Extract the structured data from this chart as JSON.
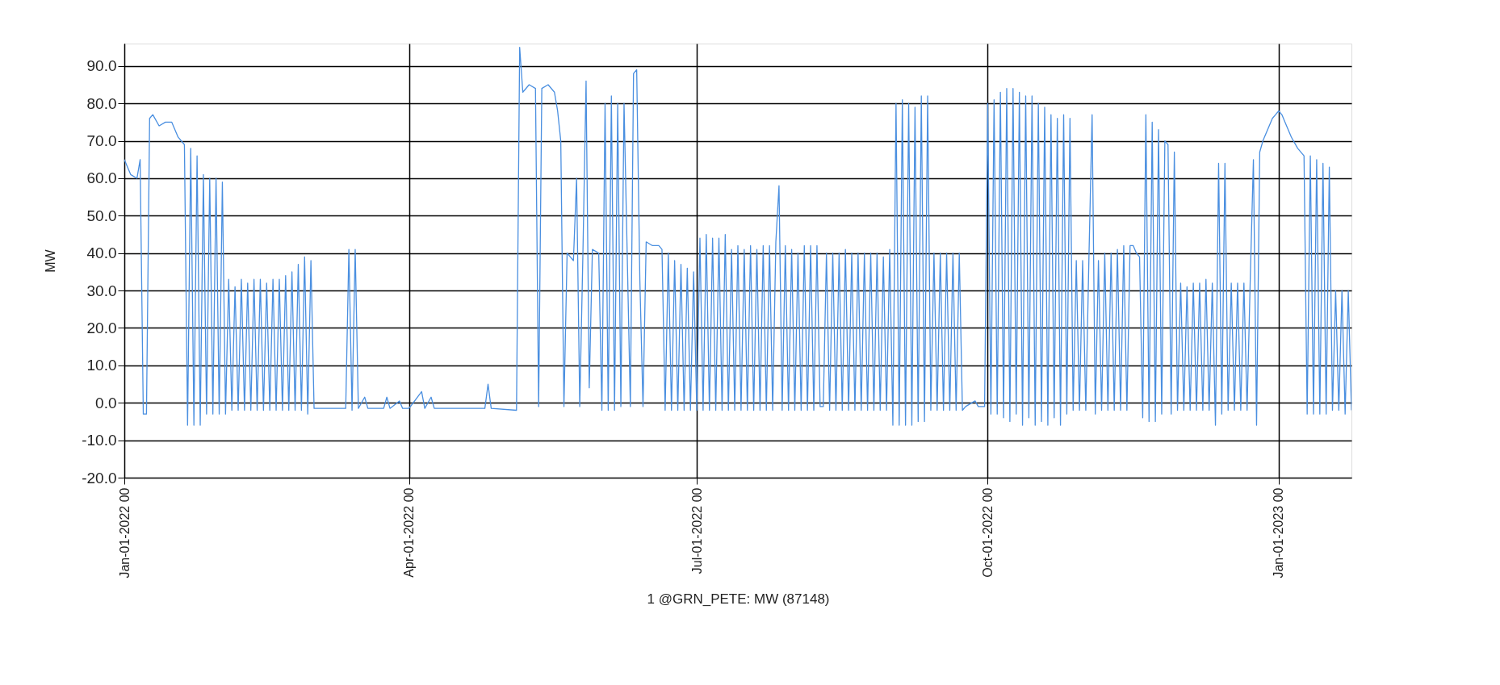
{
  "chart_data": {
    "type": "line",
    "ylabel": "MW",
    "xlabel": "1 @GRN_PETE: MW   (87148)",
    "xlim": [
      "2022-01-01",
      "2023-01-24"
    ],
    "xticks": [
      {
        "value": "2022-01-01",
        "label": "Jan-01-2022 00"
      },
      {
        "value": "2022-04-01",
        "label": "Apr-01-2022 00"
      },
      {
        "value": "2022-07-01",
        "label": "Jul-01-2022 00"
      },
      {
        "value": "2022-10-01",
        "label": "Oct-01-2022 00"
      },
      {
        "value": "2023-01-01",
        "label": "Jan-01-2023 00"
      }
    ],
    "ylim": [
      -20,
      96
    ],
    "yticks": [
      {
        "value": -20,
        "label": "-20.0"
      },
      {
        "value": -10,
        "label": "-10.0"
      },
      {
        "value": 0,
        "label": "0.0"
      },
      {
        "value": 10,
        "label": "10.0"
      },
      {
        "value": 20,
        "label": "20.0"
      },
      {
        "value": 30,
        "label": "30.0"
      },
      {
        "value": 40,
        "label": "40.0"
      },
      {
        "value": 50,
        "label": "50.0"
      },
      {
        "value": 60,
        "label": "60.0"
      },
      {
        "value": 70,
        "label": "70.0"
      },
      {
        "value": 80,
        "label": "80.0"
      },
      {
        "value": 90,
        "label": "90.0"
      }
    ],
    "grid": true,
    "marker": "none",
    "line_style": "solid",
    "series": [
      {
        "color": "#4a8fe0",
        "x": [
          "2022-01-01",
          "2022-01-03",
          "2022-01-05",
          "2022-01-06",
          "2022-01-07",
          "2022-01-08",
          "2022-01-09",
          "2022-01-10",
          "2022-01-12",
          "2022-01-14",
          "2022-01-16",
          "2022-01-18",
          "2022-01-20",
          "2022-01-21",
          "2022-01-22",
          "2022-01-23",
          "2022-01-24",
          "2022-01-25",
          "2022-01-26",
          "2022-01-27",
          "2022-01-28",
          "2022-01-29",
          "2022-01-30",
          "2022-01-31",
          "2022-02-01",
          "2022-02-02",
          "2022-02-03",
          "2022-02-04",
          "2022-02-05",
          "2022-02-06",
          "2022-02-07",
          "2022-02-08",
          "2022-02-09",
          "2022-02-10",
          "2022-02-11",
          "2022-02-12",
          "2022-02-13",
          "2022-02-14",
          "2022-02-15",
          "2022-02-16",
          "2022-02-17",
          "2022-02-18",
          "2022-02-19",
          "2022-02-20",
          "2022-02-21",
          "2022-02-22",
          "2022-02-23",
          "2022-02-24",
          "2022-02-25",
          "2022-02-26",
          "2022-02-27",
          "2022-02-28",
          "2022-03-01",
          "2022-03-02",
          "2022-03-12",
          "2022-03-13",
          "2022-03-14",
          "2022-03-15",
          "2022-03-16",
          "2022-03-18",
          "2022-03-19",
          "2022-03-24",
          "2022-03-25",
          "2022-03-26",
          "2022-03-29",
          "2022-03-30",
          "2022-04-01",
          "2022-04-05",
          "2022-04-06",
          "2022-04-08",
          "2022-04-09",
          "2022-04-25",
          "2022-04-26",
          "2022-04-27",
          "2022-05-05",
          "2022-05-06",
          "2022-05-07",
          "2022-05-09",
          "2022-05-11",
          "2022-05-12",
          "2022-05-13",
          "2022-05-15",
          "2022-05-17",
          "2022-05-18",
          "2022-05-19",
          "2022-05-20",
          "2022-05-21",
          "2022-05-22",
          "2022-05-23",
          "2022-05-24",
          "2022-05-25",
          "2022-05-26",
          "2022-05-27",
          "2022-05-28",
          "2022-05-29",
          "2022-05-31",
          "2022-06-01",
          "2022-06-02",
          "2022-06-03",
          "2022-06-04",
          "2022-06-05",
          "2022-06-06",
          "2022-06-07",
          "2022-06-08",
          "2022-06-09",
          "2022-06-10",
          "2022-06-11",
          "2022-06-12",
          "2022-06-13",
          "2022-06-14",
          "2022-06-15",
          "2022-06-17",
          "2022-06-19",
          "2022-06-20",
          "2022-06-21",
          "2022-06-22",
          "2022-06-23",
          "2022-06-24",
          "2022-06-25",
          "2022-06-26",
          "2022-06-27",
          "2022-06-28",
          "2022-06-29",
          "2022-06-30",
          "2022-07-01",
          "2022-07-02",
          "2022-07-03",
          "2022-07-04",
          "2022-07-05",
          "2022-07-06",
          "2022-07-07",
          "2022-07-08",
          "2022-07-09",
          "2022-07-10",
          "2022-07-11",
          "2022-07-12",
          "2022-07-13",
          "2022-07-14",
          "2022-07-15",
          "2022-07-16",
          "2022-07-17",
          "2022-07-18",
          "2022-07-19",
          "2022-07-20",
          "2022-07-21",
          "2022-07-22",
          "2022-07-23",
          "2022-07-24",
          "2022-07-25",
          "2022-07-26",
          "2022-07-27",
          "2022-07-28",
          "2022-07-29",
          "2022-07-30",
          "2022-07-31",
          "2022-08-01",
          "2022-08-02",
          "2022-08-03",
          "2022-08-04",
          "2022-08-05",
          "2022-08-06",
          "2022-08-07",
          "2022-08-08",
          "2022-08-09",
          "2022-08-10",
          "2022-08-11",
          "2022-08-12",
          "2022-08-13",
          "2022-08-14",
          "2022-08-15",
          "2022-08-16",
          "2022-08-17",
          "2022-08-18",
          "2022-08-19",
          "2022-08-20",
          "2022-08-21",
          "2022-08-22",
          "2022-08-23",
          "2022-08-24",
          "2022-08-25",
          "2022-08-26",
          "2022-08-27",
          "2022-08-28",
          "2022-08-29",
          "2022-08-30",
          "2022-08-31",
          "2022-09-01",
          "2022-09-02",
          "2022-09-03",
          "2022-09-04",
          "2022-09-05",
          "2022-09-06",
          "2022-09-07",
          "2022-09-08",
          "2022-09-09",
          "2022-09-10",
          "2022-09-11",
          "2022-09-12",
          "2022-09-13",
          "2022-09-14",
          "2022-09-15",
          "2022-09-16",
          "2022-09-17",
          "2022-09-18",
          "2022-09-19",
          "2022-09-20",
          "2022-09-21",
          "2022-09-22",
          "2022-09-23",
          "2022-09-24",
          "2022-09-27",
          "2022-09-28",
          "2022-09-30",
          "2022-10-01",
          "2022-10-02",
          "2022-10-03",
          "2022-10-04",
          "2022-10-05",
          "2022-10-06",
          "2022-10-07",
          "2022-10-08",
          "2022-10-09",
          "2022-10-10",
          "2022-10-11",
          "2022-10-12",
          "2022-10-13",
          "2022-10-14",
          "2022-10-15",
          "2022-10-16",
          "2022-10-17",
          "2022-10-18",
          "2022-10-19",
          "2022-10-20",
          "2022-10-21",
          "2022-10-22",
          "2022-10-23",
          "2022-10-24",
          "2022-10-25",
          "2022-10-26",
          "2022-10-27",
          "2022-10-28",
          "2022-10-29",
          "2022-10-30",
          "2022-10-31",
          "2022-11-01",
          "2022-11-02",
          "2022-11-03",
          "2022-11-04",
          "2022-11-05",
          "2022-11-06",
          "2022-11-07",
          "2022-11-08",
          "2022-11-09",
          "2022-11-10",
          "2022-11-11",
          "2022-11-12",
          "2022-11-13",
          "2022-11-14",
          "2022-11-15",
          "2022-11-16",
          "2022-11-17",
          "2022-11-18",
          "2022-11-19",
          "2022-11-20",
          "2022-11-21",
          "2022-11-22",
          "2022-11-23",
          "2022-11-24",
          "2022-11-25",
          "2022-11-26",
          "2022-11-27",
          "2022-11-28",
          "2022-11-29",
          "2022-11-30",
          "2022-12-01",
          "2022-12-02",
          "2022-12-03",
          "2022-12-04",
          "2022-12-05",
          "2022-12-06",
          "2022-12-07",
          "2022-12-08",
          "2022-12-09",
          "2022-12-10",
          "2022-12-11",
          "2022-12-12",
          "2022-12-13",
          "2022-12-14",
          "2022-12-15",
          "2022-12-16",
          "2022-12-17",
          "2022-12-18",
          "2022-12-19",
          "2022-12-20",
          "2022-12-21",
          "2022-12-22",
          "2022-12-23",
          "2022-12-24",
          "2022-12-25",
          "2022-12-26",
          "2022-12-27",
          "2022-12-28",
          "2022-12-29",
          "2022-12-30",
          "2022-12-31",
          "2023-01-01",
          "2023-01-02",
          "2023-01-03",
          "2023-01-05",
          "2023-01-07",
          "2023-01-09",
          "2023-01-10",
          "2023-01-11",
          "2023-01-12",
          "2023-01-13",
          "2023-01-14",
          "2023-01-15",
          "2023-01-16",
          "2023-01-17",
          "2023-01-18",
          "2023-01-19",
          "2023-01-20",
          "2023-01-21",
          "2023-01-22",
          "2023-01-23",
          "2023-01-24"
        ],
        "values": [
          65,
          61,
          60,
          65,
          -3,
          -3,
          76,
          77,
          74,
          75,
          75,
          71,
          69,
          -6,
          68,
          -6,
          66,
          -6,
          61,
          -3,
          60,
          -3,
          60,
          -3,
          59,
          -3,
          33,
          -2,
          31,
          -2,
          33,
          -2,
          32,
          -2,
          33,
          -2,
          33,
          -2,
          32,
          -2,
          33,
          -2,
          33,
          -2,
          34,
          -2,
          35,
          -2,
          37,
          -2,
          39,
          -3,
          38,
          -1.5,
          -1.5,
          41,
          -2,
          41,
          -1.5,
          1.5,
          -1.5,
          -1.5,
          1.5,
          -1.5,
          0.5,
          -1.5,
          -1.5,
          3,
          -1.5,
          1.5,
          -1.5,
          -1.5,
          5,
          -1.5,
          -2,
          95,
          83,
          85,
          84,
          -1,
          84,
          85,
          83,
          78,
          70,
          -1,
          40,
          39,
          38,
          60,
          -1,
          40,
          86,
          4,
          41,
          40,
          -2,
          80,
          -2,
          82,
          -2,
          80,
          -1,
          80,
          40,
          -1,
          88,
          89,
          33,
          -1,
          43,
          42,
          42,
          41,
          -2,
          40,
          -2,
          38,
          -2,
          37,
          -2,
          36,
          -2,
          35,
          -2,
          44,
          -2,
          45,
          -2,
          44,
          -2,
          44,
          -2,
          45,
          -2,
          41,
          -2,
          42,
          -2,
          41,
          -2,
          42,
          -2,
          41,
          -2,
          42,
          -2,
          42,
          -2,
          43,
          58,
          -2,
          42,
          -2,
          41,
          -2,
          40,
          -2,
          42,
          -2,
          42,
          -2,
          42,
          -1,
          -1,
          40,
          -2,
          40,
          -2,
          40,
          -2,
          41,
          -2,
          40,
          -2,
          40,
          -2,
          40,
          -2,
          40,
          -2,
          40,
          -2,
          39,
          -2,
          41,
          -6,
          80,
          -6,
          81,
          -6,
          80,
          -6,
          79,
          -5,
          82,
          -5,
          82,
          -2,
          40,
          -2,
          40,
          -2,
          40,
          -2,
          40,
          -2,
          40,
          -2,
          -1,
          0.5,
          -1,
          -1,
          80,
          -3,
          81,
          -3,
          83,
          -4,
          84,
          -5,
          84,
          -3,
          83,
          -6,
          82,
          -4,
          82,
          -6,
          80,
          -5,
          79,
          -6,
          77,
          -4,
          76,
          -6,
          77,
          -3,
          76,
          -2,
          38,
          -2,
          38,
          -2,
          39,
          77,
          -3,
          38,
          -2,
          40,
          -2,
          40,
          -2,
          41,
          -2,
          42,
          -2,
          42,
          42,
          40,
          39,
          -4,
          77,
          -5,
          75,
          -5,
          73,
          -3,
          70,
          69,
          -3,
          67,
          -2,
          32,
          -2,
          31,
          -2,
          32,
          -2,
          32,
          -2,
          33,
          -2,
          32,
          -6,
          64,
          -3,
          64,
          -2,
          32,
          -2,
          32,
          -2,
          32,
          -2,
          33,
          65,
          -6,
          67,
          70,
          72,
          74,
          76,
          77,
          78,
          77,
          75,
          71,
          68,
          66,
          -3,
          66,
          -3,
          65,
          -3,
          64,
          -3,
          63,
          -2,
          30,
          -2,
          30,
          -3,
          30,
          -2
        ]
      }
    ]
  }
}
